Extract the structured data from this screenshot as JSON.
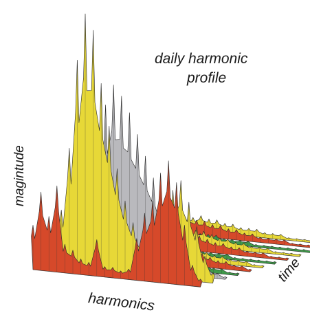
{
  "chart_data": {
    "type": "area",
    "style": "3d-waterfall",
    "title": "daily harmonic profile",
    "xlabel": "harmonics",
    "ylabel": "magintude",
    "zlabel": "time",
    "grid": false,
    "legend": "none",
    "series": [
      {
        "color": "#d6492a",
        "values": [
          0.17,
          0.3,
          0.21,
          0.33,
          0.11,
          0.09,
          0.06,
          0.05,
          0.14,
          0.04,
          0.04,
          0.03,
          0.04,
          0.16,
          0.26,
          0.31,
          0.42,
          0.47,
          0.39,
          0.23,
          0.08,
          0.03
        ]
      },
      {
        "color": "#e7d837",
        "values": [
          0.08,
          0.15,
          0.22,
          0.46,
          0.8,
          0.98,
          0.92,
          0.72,
          0.56,
          0.4,
          0.28,
          0.2,
          0.14,
          0.1,
          0.18,
          0.24,
          0.34,
          0.38,
          0.3,
          0.21,
          0.1,
          0.04
        ]
      },
      {
        "color": "#b9b9bd",
        "values": [
          0.04,
          0.06,
          0.09,
          0.18,
          0.36,
          0.5,
          0.62,
          0.7,
          0.66,
          0.6,
          0.52,
          0.44,
          0.36,
          0.26,
          0.2,
          0.16,
          0.12,
          0.08,
          0.05,
          0.03,
          0.02,
          0.01
        ]
      },
      {
        "color": "#3f9a4a",
        "values": [
          0.05,
          0.04,
          0.03,
          0.04,
          0.06,
          0.05,
          0.04,
          0.03,
          0.04,
          0.05,
          0.04,
          0.03,
          0.03,
          0.04,
          0.06,
          0.05,
          0.04,
          0.03,
          0.02,
          0.02,
          0.01,
          0.01
        ]
      },
      {
        "color": "#d6492a",
        "values": [
          0.07,
          0.12,
          0.15,
          0.2,
          0.28,
          0.32,
          0.29,
          0.24,
          0.26,
          0.22,
          0.18,
          0.14,
          0.1,
          0.08,
          0.06,
          0.05,
          0.04,
          0.03,
          0.03,
          0.02,
          0.02,
          0.01
        ]
      },
      {
        "color": "#e7d837",
        "values": [
          0.06,
          0.09,
          0.12,
          0.16,
          0.15,
          0.18,
          0.16,
          0.14,
          0.12,
          0.1,
          0.08,
          0.07,
          0.06,
          0.05,
          0.04,
          0.03,
          0.03,
          0.02,
          0.02,
          0.02,
          0.01,
          0.01
        ]
      },
      {
        "color": "#3f9a4a",
        "values": [
          0.03,
          0.04,
          0.05,
          0.04,
          0.05,
          0.04,
          0.05,
          0.04,
          0.03,
          0.04,
          0.03,
          0.03,
          0.02,
          0.02,
          0.02,
          0.02,
          0.01,
          0.01,
          0.01,
          0.01,
          0.01,
          0.01
        ]
      },
      {
        "color": "#d6492a",
        "values": [
          0.05,
          0.07,
          0.09,
          0.1,
          0.12,
          0.11,
          0.1,
          0.09,
          0.08,
          0.07,
          0.06,
          0.05,
          0.04,
          0.04,
          0.03,
          0.03,
          0.02,
          0.02,
          0.02,
          0.01,
          0.01,
          0.01
        ]
      },
      {
        "color": "#e7d837",
        "values": [
          0.04,
          0.06,
          0.07,
          0.08,
          0.09,
          0.08,
          0.08,
          0.07,
          0.06,
          0.06,
          0.05,
          0.04,
          0.04,
          0.03,
          0.03,
          0.02,
          0.02,
          0.02,
          0.01,
          0.01,
          0.01,
          0.01
        ]
      },
      {
        "color": "#3f9a4a",
        "values": [
          0.03,
          0.03,
          0.04,
          0.04,
          0.04,
          0.04,
          0.03,
          0.03,
          0.03,
          0.03,
          0.02,
          0.02,
          0.02,
          0.02,
          0.01,
          0.01,
          0.01,
          0.01,
          0.01,
          0.01,
          0.01,
          0.01
        ]
      },
      {
        "color": "#d6492a",
        "values": [
          0.04,
          0.05,
          0.06,
          0.07,
          0.07,
          0.06,
          0.06,
          0.05,
          0.05,
          0.04,
          0.04,
          0.03,
          0.03,
          0.02,
          0.02,
          0.02,
          0.02,
          0.01,
          0.01,
          0.01,
          0.01,
          0.01
        ]
      },
      {
        "color": "#e7d837",
        "values": [
          0.03,
          0.04,
          0.05,
          0.05,
          0.06,
          0.05,
          0.05,
          0.04,
          0.04,
          0.03,
          0.03,
          0.03,
          0.02,
          0.02,
          0.02,
          0.01,
          0.01,
          0.01,
          0.01,
          0.01,
          0.01,
          0.01
        ]
      }
    ]
  }
}
